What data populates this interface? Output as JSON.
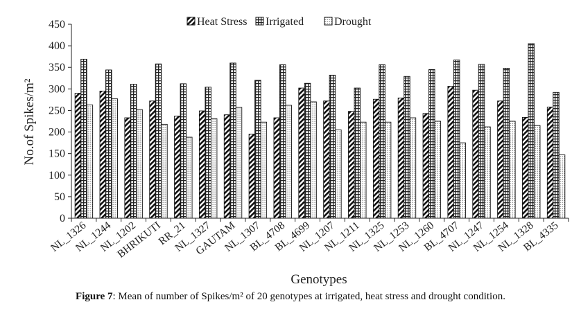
{
  "figure": {
    "label": "Figure 7",
    "caption": ": Mean of number of Spikes/m² of 20 genotypes at irrigated, heat stress and drought condition."
  },
  "chart_data": {
    "type": "bar",
    "title": "",
    "xlabel": "Genotypes",
    "ylabel": "No.of Spikes/m²",
    "ylim": [
      0,
      450
    ],
    "yticks": [
      0,
      50,
      100,
      150,
      200,
      250,
      300,
      350,
      400,
      450
    ],
    "legend_position": "top-center",
    "categories": [
      "NL_1326",
      "NL_1244",
      "NL_1202",
      "BHRIKUTI",
      "RR_21",
      "NL_1327",
      "GAUTAM",
      "NL_1307",
      "BL_4708",
      "BL_4699",
      "NL_1207",
      "NL_1211",
      "NL_1325",
      "NL_1253",
      "NL_1260",
      "BL_4707",
      "NL_1247",
      "NL_1254",
      "NL_1328",
      "BL_4335"
    ],
    "series": [
      {
        "name": "Heat Stress",
        "pattern": "diagonal",
        "values": [
          290,
          295,
          233,
          272,
          237,
          249,
          240,
          195,
          233,
          302,
          272,
          248,
          276,
          279,
          243,
          306,
          297,
          272,
          234,
          258
        ]
      },
      {
        "name": "Irrigated",
        "pattern": "grid",
        "values": [
          369,
          344,
          311,
          358,
          312,
          304,
          360,
          320,
          356,
          313,
          332,
          302,
          356,
          329,
          345,
          367,
          357,
          348,
          405,
          292
        ]
      },
      {
        "name": "Drought",
        "pattern": "dots",
        "values": [
          263,
          277,
          252,
          218,
          188,
          231,
          257,
          223,
          262,
          270,
          205,
          223,
          223,
          233,
          225,
          175,
          212,
          225,
          215,
          147
        ]
      }
    ]
  }
}
